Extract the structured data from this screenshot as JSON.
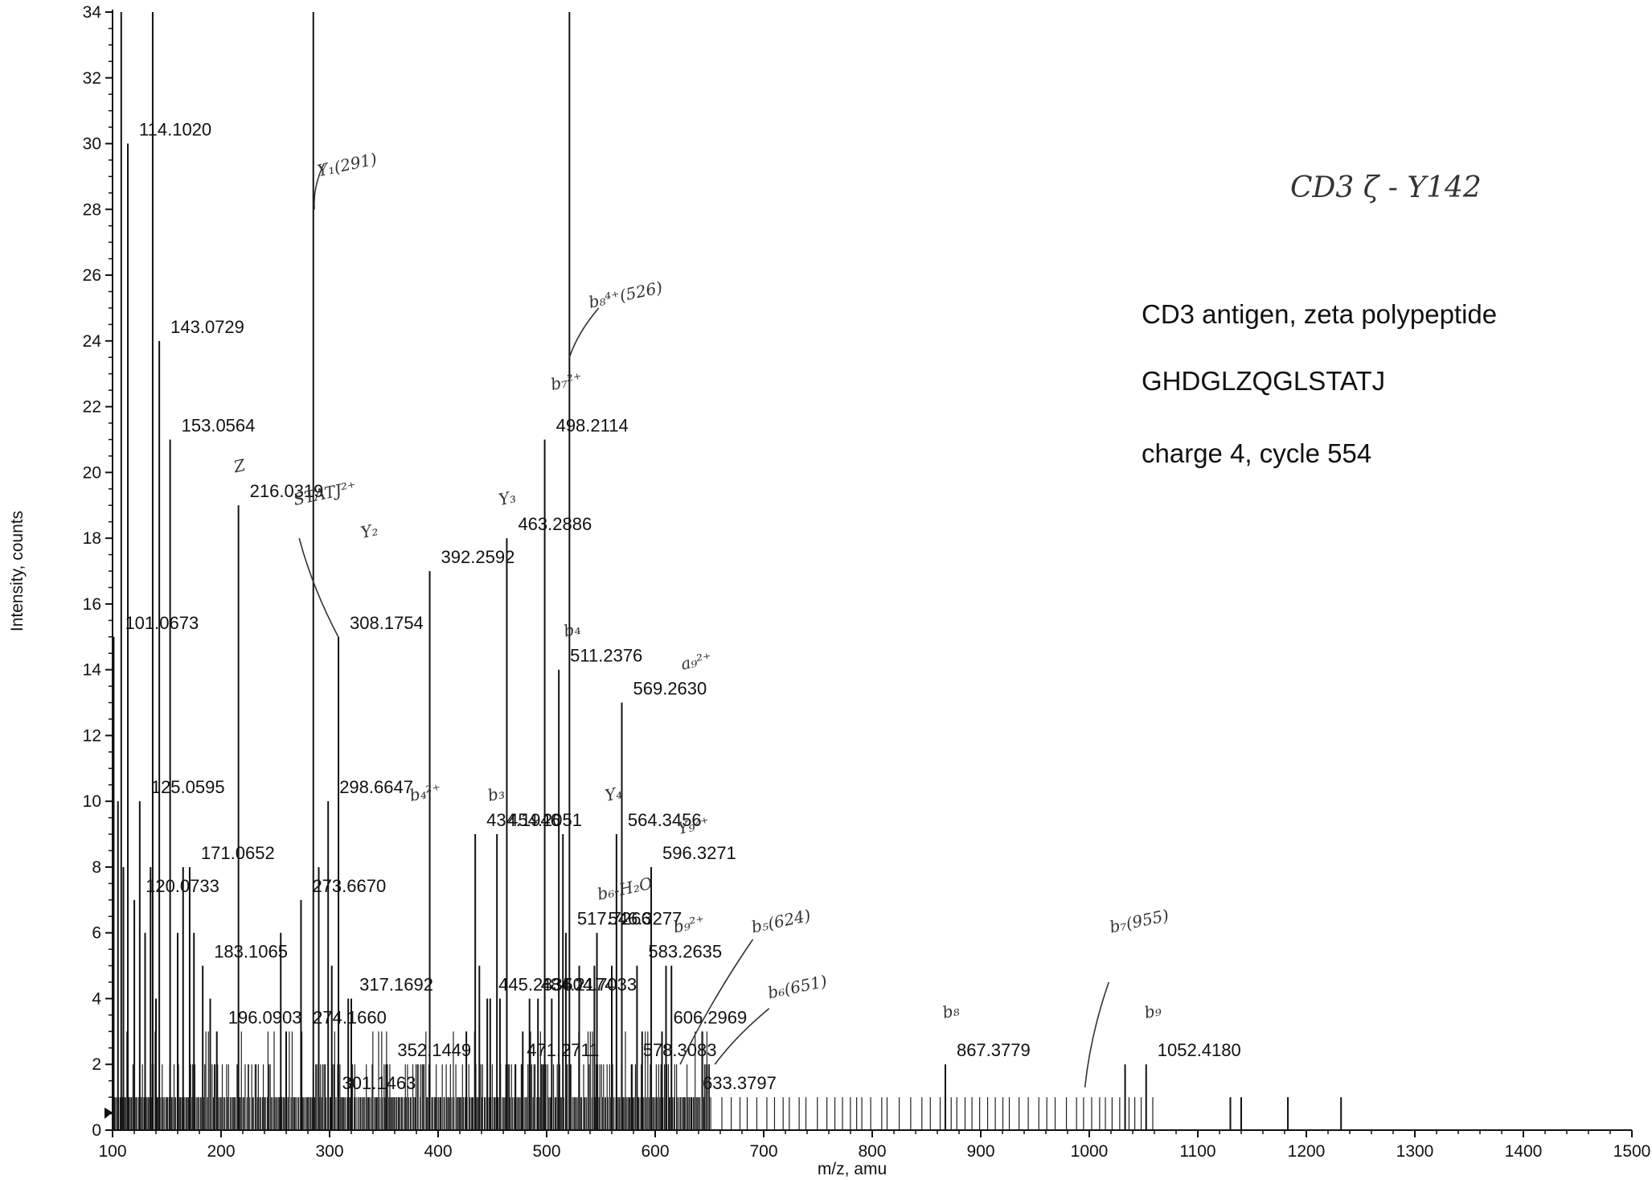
{
  "chart_data": {
    "type": "bar",
    "xlabel": "m/z, amu",
    "ylabel": "Intensity, counts",
    "xlim": [
      100,
      1500
    ],
    "ylim": [
      0,
      34
    ],
    "xticks": [
      100,
      200,
      300,
      400,
      500,
      600,
      700,
      800,
      900,
      1000,
      1100,
      1200,
      1300,
      1400,
      1500
    ],
    "yticks": [
      0,
      2,
      4,
      6,
      8,
      10,
      12,
      14,
      16,
      18,
      20,
      22,
      24,
      26,
      28,
      30,
      32,
      34
    ],
    "grid": false,
    "peaks": [
      {
        "mz": 101.0673,
        "intensity": 15,
        "label": "101.0673"
      },
      {
        "mz": 114.102,
        "intensity": 30,
        "label": "114.1020"
      },
      {
        "mz": 120.0733,
        "intensity": 7,
        "label": "120.0733"
      },
      {
        "mz": 125.0595,
        "intensity": 10,
        "label": "125.0595"
      },
      {
        "mz": 143.0729,
        "intensity": 24,
        "label": "143.0729"
      },
      {
        "mz": 153.0564,
        "intensity": 21,
        "label": "153.0564"
      },
      {
        "mz": 171.0652,
        "intensity": 8,
        "label": "171.0652"
      },
      {
        "mz": 183.1065,
        "intensity": 5,
        "label": "183.1065"
      },
      {
        "mz": 196.0903,
        "intensity": 3,
        "label": "196.0903"
      },
      {
        "mz": 216.0319,
        "intensity": 19,
        "label": "216.0319"
      },
      {
        "mz": 273.667,
        "intensity": 7,
        "label": "273.6670"
      },
      {
        "mz": 274.166,
        "intensity": 3,
        "label": "274.1660"
      },
      {
        "mz": 298.6647,
        "intensity": 10,
        "label": "298.6647"
      },
      {
        "mz": 301.1463,
        "intensity": 1,
        "label": "301.1463"
      },
      {
        "mz": 308.1754,
        "intensity": 15,
        "label": "308.1754"
      },
      {
        "mz": 317.1692,
        "intensity": 4,
        "label": "317.1692"
      },
      {
        "mz": 352.1449,
        "intensity": 2,
        "label": "352.1449"
      },
      {
        "mz": 392.2592,
        "intensity": 17,
        "label": "392.2592"
      },
      {
        "mz": 434.1946,
        "intensity": 9,
        "label": "434.1946"
      },
      {
        "mz": 445.2836,
        "intensity": 4,
        "label": "445.2836"
      },
      {
        "mz": 454.2051,
        "intensity": 9,
        "label": "454.2051"
      },
      {
        "mz": 463.2886,
        "intensity": 18,
        "label": "463.2886"
      },
      {
        "mz": 471.2711,
        "intensity": 2,
        "label": "471.2711"
      },
      {
        "mz": 484.2174,
        "intensity": 4,
        "label": "484.2174"
      },
      {
        "mz": 498.2114,
        "intensity": 21,
        "label": "498.2114"
      },
      {
        "mz": 504.7033,
        "intensity": 4,
        "label": "504.7033"
      },
      {
        "mz": 511.2376,
        "intensity": 14,
        "label": "511.2376"
      },
      {
        "mz": 517.7266,
        "intensity": 6,
        "label": "517.7266"
      },
      {
        "mz": 546.3277,
        "intensity": 6,
        "label": "546.3277"
      },
      {
        "mz": 564.3456,
        "intensity": 9,
        "label": "564.3456"
      },
      {
        "mz": 569.263,
        "intensity": 13,
        "label": "569.2630"
      },
      {
        "mz": 578.3083,
        "intensity": 2,
        "label": "578.3083"
      },
      {
        "mz": 583.2635,
        "intensity": 5,
        "label": "583.2635"
      },
      {
        "mz": 596.3271,
        "intensity": 8,
        "label": "596.3271"
      },
      {
        "mz": 606.2969,
        "intensity": 3,
        "label": "606.2969"
      },
      {
        "mz": 633.3797,
        "intensity": 1,
        "label": "633.3797"
      },
      {
        "mz": 867.3779,
        "intensity": 2,
        "label": "867.3779"
      },
      {
        "mz": 1052.418,
        "intensity": 2,
        "label": "1052.4180"
      }
    ],
    "unlabeled_peaks": [
      {
        "mz": 108,
        "intensity": 34
      },
      {
        "mz": 137,
        "intensity": 34
      },
      {
        "mz": 285,
        "intensity": 34
      },
      {
        "mz": 521,
        "intensity": 34
      },
      {
        "mz": 105,
        "intensity": 10
      },
      {
        "mz": 110,
        "intensity": 8
      },
      {
        "mz": 130,
        "intensity": 6
      },
      {
        "mz": 135,
        "intensity": 8
      },
      {
        "mz": 140,
        "intensity": 4
      },
      {
        "mz": 160,
        "intensity": 6
      },
      {
        "mz": 165,
        "intensity": 8
      },
      {
        "mz": 175,
        "intensity": 6
      },
      {
        "mz": 190,
        "intensity": 4
      },
      {
        "mz": 255,
        "intensity": 6
      },
      {
        "mz": 260,
        "intensity": 3
      },
      {
        "mz": 290,
        "intensity": 8
      },
      {
        "mz": 302,
        "intensity": 5
      },
      {
        "mz": 320,
        "intensity": 4
      },
      {
        "mz": 426,
        "intensity": 3
      },
      {
        "mz": 438,
        "intensity": 5
      },
      {
        "mz": 448,
        "intensity": 4
      },
      {
        "mz": 457,
        "intensity": 4
      },
      {
        "mz": 478,
        "intensity": 3
      },
      {
        "mz": 492,
        "intensity": 4
      },
      {
        "mz": 515,
        "intensity": 9
      },
      {
        "mz": 530,
        "intensity": 5
      },
      {
        "mz": 544,
        "intensity": 5
      },
      {
        "mz": 560,
        "intensity": 5
      },
      {
        "mz": 588,
        "intensity": 3
      },
      {
        "mz": 610,
        "intensity": 5
      },
      {
        "mz": 615,
        "intensity": 5
      },
      {
        "mz": 1033,
        "intensity": 2
      },
      {
        "mz": 1130,
        "intensity": 1
      },
      {
        "mz": 1140,
        "intensity": 1
      },
      {
        "mz": 1183,
        "intensity": 1
      },
      {
        "mz": 1232,
        "intensity": 1
      }
    ]
  },
  "info": {
    "title": "CD3 antigen, zeta polypeptide",
    "sequence": "GHDGLZQGLSTATJ",
    "charge_cycle": "charge 4, cycle 554"
  },
  "handwriting": {
    "header": "CD3 ζ - Y142",
    "annotations": [
      {
        "text": "Y₁(291)",
        "mz": 290,
        "y": 29
      },
      {
        "text": "b₈⁴⁺(526)",
        "mz": 540,
        "y": 25
      },
      {
        "text": "b₇²⁺",
        "mz": 505,
        "y": 22.5
      },
      {
        "text": "Z",
        "mz": 213,
        "y": 20
      },
      {
        "text": "STATJ²⁺",
        "mz": 268,
        "y": 19
      },
      {
        "text": "Y₂",
        "mz": 330,
        "y": 18
      },
      {
        "text": "Y₃",
        "mz": 457,
        "y": 19
      },
      {
        "text": "b₄",
        "mz": 517,
        "y": 15
      },
      {
        "text": "a₉²⁺",
        "mz": 625,
        "y": 14
      },
      {
        "text": "b₄²⁺",
        "mz": 375,
        "y": 10
      },
      {
        "text": "b₃",
        "mz": 447,
        "y": 10
      },
      {
        "text": "Y₄",
        "mz": 555,
        "y": 10
      },
      {
        "text": "Y₉²⁺",
        "mz": 622,
        "y": 9
      },
      {
        "text": "b₆-H₂O",
        "mz": 548,
        "y": 7
      },
      {
        "text": "b₉²⁺",
        "mz": 618,
        "y": 6
      },
      {
        "text": "b₅(624)",
        "mz": 690,
        "y": 6
      },
      {
        "text": "b₆(651)",
        "mz": 705,
        "y": 4
      },
      {
        "text": "b₇(955)",
        "mz": 1020,
        "y": 6
      },
      {
        "text": "b₈",
        "mz": 866,
        "y": 3.4
      },
      {
        "text": "b₉",
        "mz": 1052,
        "y": 3.4
      }
    ]
  }
}
